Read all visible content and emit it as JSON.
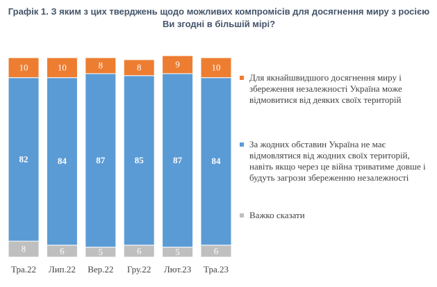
{
  "chart_data": {
    "type": "stacked-bar",
    "title": "Графік 1. З яким з цих тверджень щодо можливих компромісів для досягнення миру з росією Ви згодні в більшій мірі?",
    "categories": [
      "Тра.22",
      "Лип.22",
      "Вер.22",
      "Гру.22",
      "Лют.23",
      "Тра.23"
    ],
    "series": [
      {
        "name": "Для якнайшвидшого досягнення миру і збереження незалежності Україна може відмовитися від деяких своїх територій",
        "color": "#ed7d31",
        "values": [
          10,
          10,
          8,
          8,
          9,
          10
        ]
      },
      {
        "name": "За жодних обставин Україна не має відмовлятися від жодних своїх територій, навіть якщо через це війна триватиме довше і будуть загрози збереженню незалежності",
        "color": "#5b9bd5",
        "values": [
          82,
          84,
          87,
          85,
          87,
          84
        ]
      },
      {
        "name": "Важко сказати",
        "color": "#bfbfbf",
        "values": [
          8,
          6,
          5,
          6,
          5,
          6
        ]
      }
    ]
  }
}
